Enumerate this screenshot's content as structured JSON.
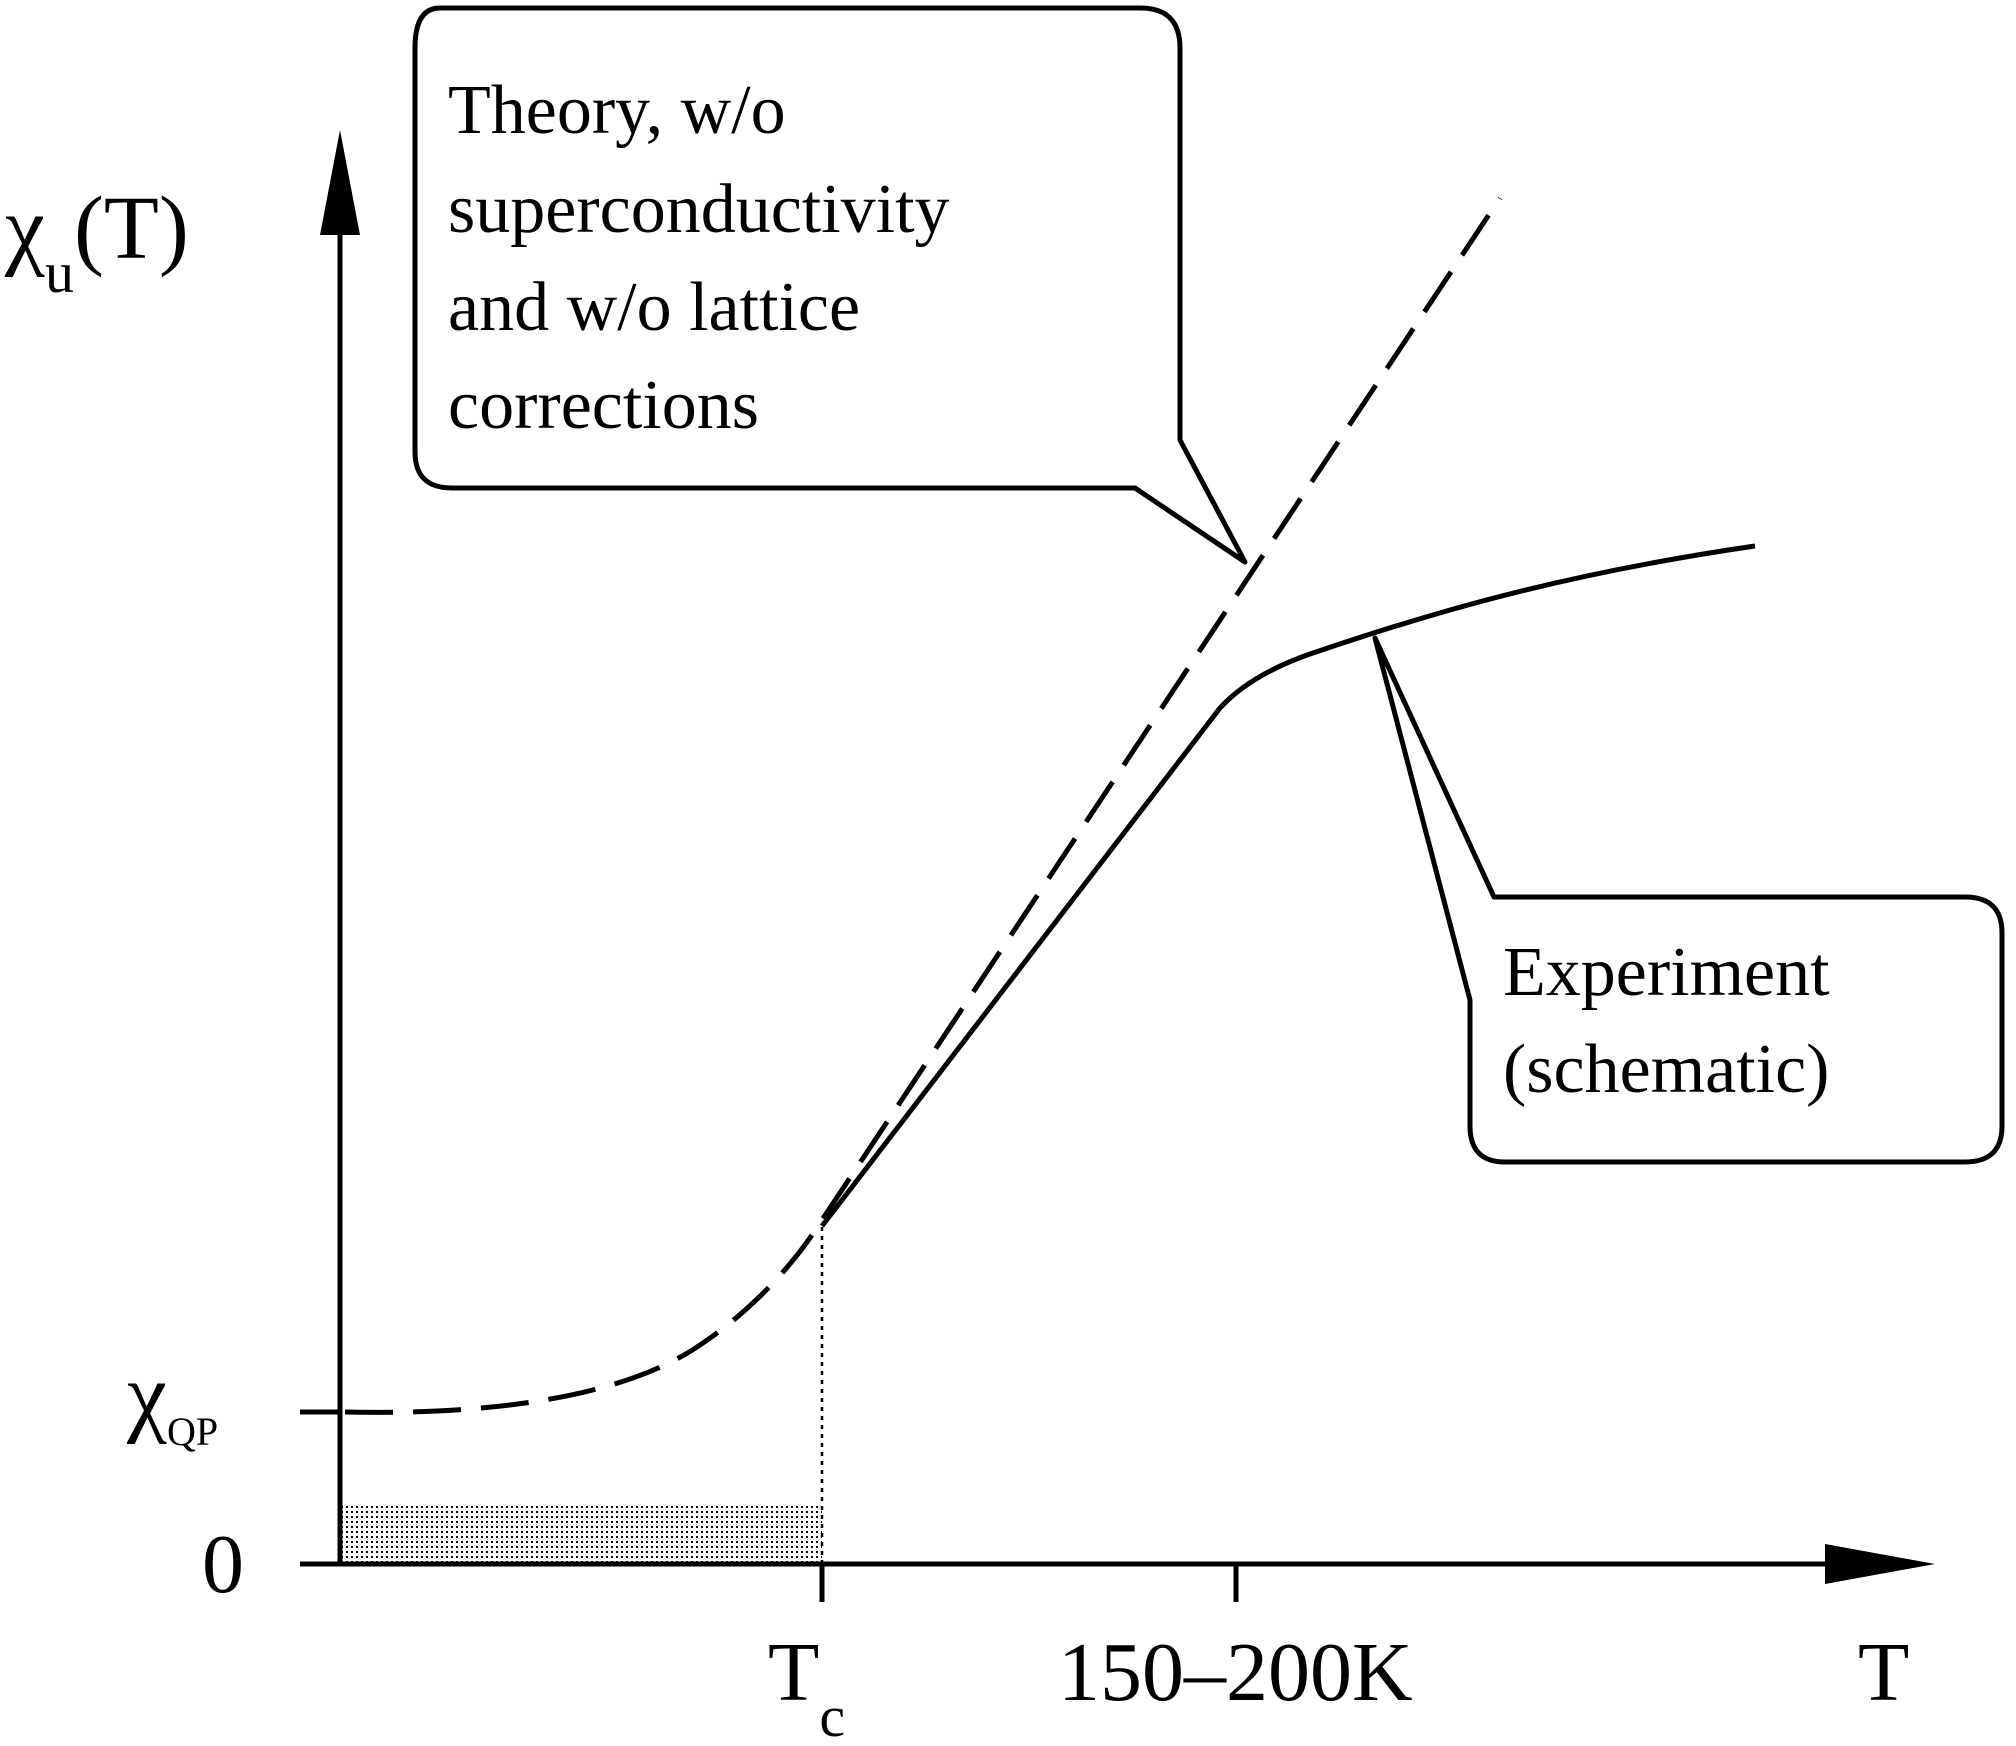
{
  "axes": {
    "y_label_symbol": "χ",
    "y_label_subscript": "u",
    "y_label_suffix": "(T)",
    "x_label": "T",
    "y_tick_zero": "0",
    "y_tick_qp_symbol": "χ",
    "y_tick_qp_subscript": "QP",
    "x_tick_tc_symbol": "T",
    "x_tick_tc_subscript": "c",
    "x_tick_range": "150–200K"
  },
  "theory_bubble": {
    "lines": [
      "Theory, w/o",
      "superconductivity",
      "and w/o lattice",
      "corrections"
    ]
  },
  "experiment_bubble": {
    "lines": [
      "Experiment",
      "(schematic)"
    ]
  },
  "colors": {
    "ink": "#000000",
    "background": "#ffffff",
    "shading": "#000000"
  }
}
